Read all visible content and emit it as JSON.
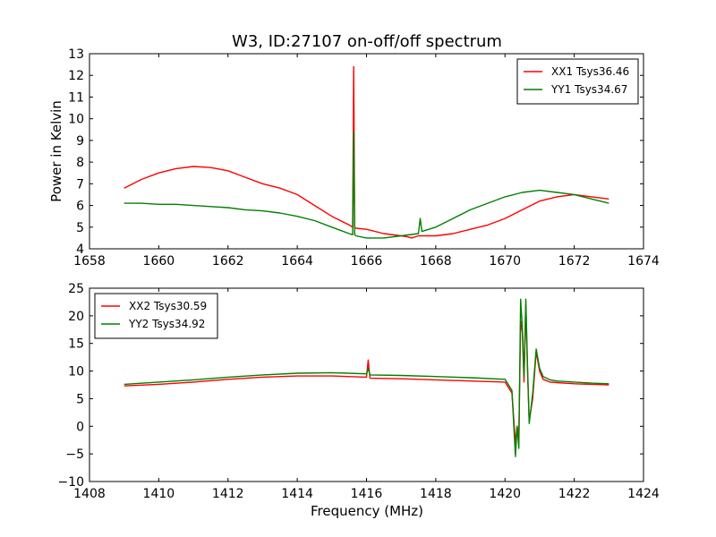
{
  "figure": {
    "title": "W3, ID:27107 on-off/off spectrum",
    "xlabel": "Frequency (MHz)"
  },
  "chart_data": [
    {
      "type": "line",
      "title": "W3, ID:27107 on-off/off spectrum",
      "xlabel": "",
      "ylabel": "Power in Kelvin",
      "xlim": [
        1658,
        1674
      ],
      "ylim": [
        4,
        13
      ],
      "xticks": [
        1658,
        1660,
        1662,
        1664,
        1666,
        1668,
        1670,
        1672,
        1674
      ],
      "yticks": [
        4,
        5,
        6,
        7,
        8,
        9,
        10,
        11,
        12,
        13
      ],
      "grid": false,
      "legend_position": "top-right",
      "series": [
        {
          "name": "XX1 Tsys36.46",
          "color": "#ff0000",
          "x": [
            1659.0,
            1659.5,
            1660.0,
            1660.5,
            1661.0,
            1661.5,
            1662.0,
            1662.5,
            1663.0,
            1663.5,
            1664.0,
            1664.5,
            1665.0,
            1665.5,
            1665.6,
            1665.63,
            1665.66,
            1665.7,
            1666.0,
            1666.5,
            1667.0,
            1667.2,
            1667.3,
            1667.5,
            1668.0,
            1668.5,
            1669.0,
            1669.5,
            1670.0,
            1670.5,
            1671.0,
            1671.5,
            1672.0,
            1672.5,
            1673.0
          ],
          "y": [
            6.8,
            7.2,
            7.5,
            7.7,
            7.8,
            7.75,
            7.6,
            7.3,
            7.0,
            6.8,
            6.5,
            6.0,
            5.5,
            5.1,
            5.0,
            12.4,
            5.0,
            4.95,
            4.9,
            4.7,
            4.6,
            4.55,
            4.5,
            4.6,
            4.6,
            4.7,
            4.9,
            5.1,
            5.4,
            5.8,
            6.2,
            6.4,
            6.5,
            6.4,
            6.3
          ]
        },
        {
          "name": "YY1 Tsys34.67",
          "color": "#008000",
          "x": [
            1659.0,
            1659.5,
            1660.0,
            1660.5,
            1661.0,
            1661.5,
            1662.0,
            1662.5,
            1663.0,
            1663.5,
            1664.0,
            1664.5,
            1665.0,
            1665.5,
            1665.6,
            1665.63,
            1665.66,
            1665.7,
            1666.0,
            1666.5,
            1667.0,
            1667.5,
            1667.55,
            1667.6,
            1668.0,
            1668.5,
            1669.0,
            1669.5,
            1670.0,
            1670.5,
            1671.0,
            1671.5,
            1672.0,
            1672.5,
            1673.0
          ],
          "y": [
            6.1,
            6.1,
            6.05,
            6.05,
            6.0,
            5.95,
            5.9,
            5.8,
            5.75,
            5.65,
            5.5,
            5.3,
            5.0,
            4.7,
            4.65,
            9.4,
            4.65,
            4.6,
            4.5,
            4.5,
            4.6,
            4.7,
            5.4,
            4.8,
            5.0,
            5.4,
            5.8,
            6.1,
            6.4,
            6.6,
            6.7,
            6.6,
            6.5,
            6.3,
            6.1
          ]
        }
      ]
    },
    {
      "type": "line",
      "title": "",
      "xlabel": "Frequency (MHz)",
      "ylabel": "",
      "xlim": [
        1408,
        1424
      ],
      "ylim": [
        -10,
        25
      ],
      "xticks": [
        1408,
        1410,
        1412,
        1414,
        1416,
        1418,
        1420,
        1422,
        1424
      ],
      "yticks": [
        -10,
        -5,
        0,
        5,
        10,
        15,
        20,
        25
      ],
      "grid": false,
      "legend_position": "top-left",
      "series": [
        {
          "name": "XX2 Tsys30.59",
          "color": "#ff0000",
          "x": [
            1409.0,
            1410.0,
            1411.0,
            1412.0,
            1413.0,
            1414.0,
            1415.0,
            1416.0,
            1416.05,
            1416.1,
            1417.0,
            1418.0,
            1419.0,
            1420.0,
            1420.2,
            1420.3,
            1420.35,
            1420.4,
            1420.45,
            1420.5,
            1420.55,
            1420.6,
            1420.65,
            1420.7,
            1420.8,
            1420.9,
            1421.0,
            1421.1,
            1421.3,
            1421.5,
            1422.0,
            1422.5,
            1423.0
          ],
          "y": [
            7.3,
            7.6,
            8.0,
            8.5,
            8.9,
            9.1,
            9.1,
            8.9,
            12.0,
            8.7,
            8.6,
            8.4,
            8.2,
            8.0,
            6.0,
            -3.0,
            0.0,
            -2.0,
            19.0,
            17.0,
            8.0,
            22.0,
            10.0,
            1.0,
            5.0,
            13.5,
            10.0,
            8.5,
            8.0,
            7.9,
            7.7,
            7.6,
            7.5
          ]
        },
        {
          "name": "YY2 Tsys34.92",
          "color": "#008000",
          "x": [
            1409.0,
            1410.0,
            1411.0,
            1412.0,
            1413.0,
            1414.0,
            1415.0,
            1416.0,
            1416.05,
            1416.1,
            1417.0,
            1418.0,
            1419.0,
            1420.0,
            1420.2,
            1420.3,
            1420.35,
            1420.4,
            1420.45,
            1420.5,
            1420.55,
            1420.6,
            1420.65,
            1420.7,
            1420.8,
            1420.9,
            1421.0,
            1421.1,
            1421.3,
            1421.5,
            1422.0,
            1422.5,
            1423.0
          ],
          "y": [
            7.6,
            8.0,
            8.4,
            8.9,
            9.3,
            9.6,
            9.7,
            9.5,
            10.5,
            9.3,
            9.2,
            9.0,
            8.8,
            8.5,
            6.5,
            -5.5,
            0.0,
            -4.0,
            23.0,
            18.0,
            9.0,
            23.0,
            11.0,
            0.5,
            6.0,
            14.0,
            10.5,
            9.0,
            8.4,
            8.2,
            8.0,
            7.8,
            7.7
          ]
        }
      ]
    }
  ]
}
